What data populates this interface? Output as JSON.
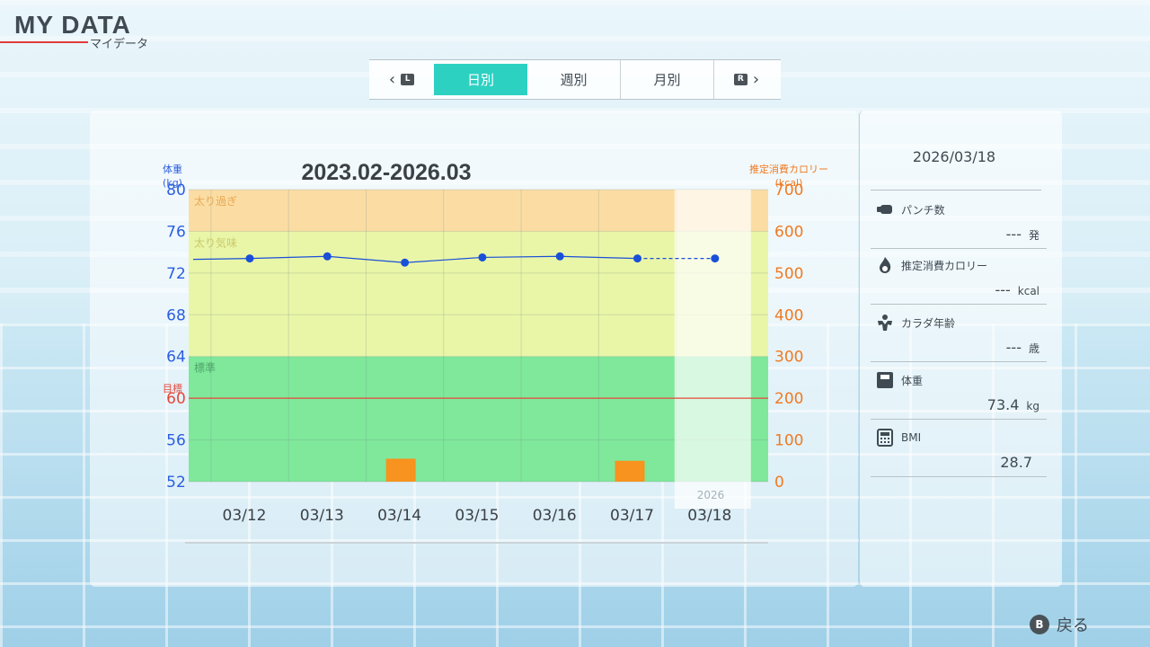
{
  "header": {
    "title": "MY DATA",
    "subtitle": "マイデータ"
  },
  "tabs": {
    "prev_key": "L",
    "next_key": "R",
    "items": [
      {
        "label": "日別",
        "active": true
      },
      {
        "label": "週別",
        "active": false
      },
      {
        "label": "月別",
        "active": false
      }
    ]
  },
  "chart_data": {
    "type": "line",
    "title": "2023.02-2026.03",
    "left_axis": {
      "label_line1": "体重",
      "label_line2": "(kg)",
      "ticks": [
        "80",
        "76",
        "72",
        "68",
        "64",
        "60",
        "56",
        "52"
      ],
      "range": [
        52,
        80
      ]
    },
    "right_axis": {
      "label_line1": "推定消費カロリー",
      "label_line2": "(kcal)",
      "ticks": [
        "700",
        "600",
        "500",
        "400",
        "300",
        "200",
        "100",
        "0"
      ],
      "range": [
        0,
        700
      ]
    },
    "zones": [
      {
        "name": "太り過ぎ",
        "from": 76,
        "to": 80,
        "color": "#fbdda4"
      },
      {
        "name": "太り気味",
        "from": 64,
        "to": 76,
        "color": "#e9f6a8"
      },
      {
        "name": "標準",
        "from": 52,
        "to": 64,
        "color": "#7fe89b"
      }
    ],
    "target": {
      "label": "目標",
      "value": 60
    },
    "categories": [
      "03/12",
      "03/13",
      "03/14",
      "03/15",
      "03/16",
      "03/17",
      "03/18"
    ],
    "year_label": "2026",
    "series": [
      {
        "name": "体重",
        "values": [
          73.4,
          73.6,
          73.0,
          73.5,
          73.6,
          73.4,
          73.4
        ],
        "color": "#1a4fd8"
      },
      {
        "name": "推定消費カロリー",
        "values": [
          0,
          0,
          55,
          0,
          0,
          50,
          0
        ],
        "color": "#f7931e"
      }
    ]
  },
  "side": {
    "date": "2026/03/18",
    "rows": [
      {
        "label": "パンチ数",
        "value": "---",
        "unit": "発",
        "icon": "punch-icon"
      },
      {
        "label": "推定消費カロリー",
        "value": "---",
        "unit": "kcal",
        "icon": "flame-icon"
      },
      {
        "label": "カラダ年齢",
        "value": "---",
        "unit": "歳",
        "icon": "muscle-icon"
      },
      {
        "label": "体重",
        "value": "73.4",
        "unit": "kg",
        "icon": "scale-icon"
      },
      {
        "label": "BMI",
        "value": "28.7",
        "unit": "",
        "icon": "calculator-icon"
      }
    ]
  },
  "footer": {
    "back_key": "B",
    "back_label": "戻る"
  }
}
